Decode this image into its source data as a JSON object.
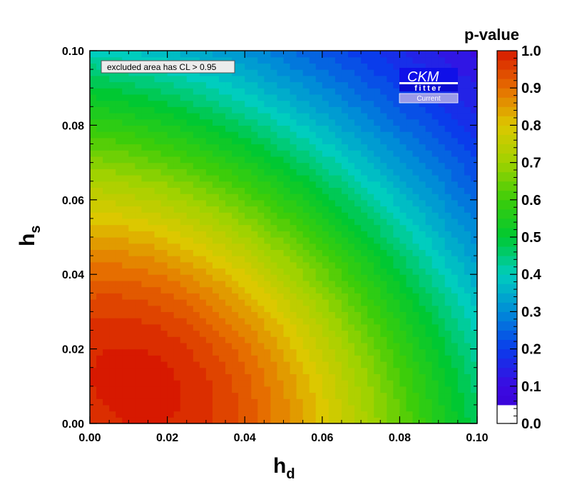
{
  "chart_data": {
    "type": "heatmap",
    "title": "",
    "xlabel": "h",
    "xlabel_sub": "d",
    "ylabel": "h",
    "ylabel_sub": "s",
    "xlim": [
      0.0,
      0.1
    ],
    "ylim": [
      0.0,
      0.1
    ],
    "x_ticks": [
      "0.00",
      "0.02",
      "0.04",
      "0.06",
      "0.08",
      "0.10"
    ],
    "y_ticks": [
      "0.00",
      "0.02",
      "0.04",
      "0.06",
      "0.08",
      "0.10"
    ],
    "x_tick_values": [
      0.0,
      0.02,
      0.04,
      0.06,
      0.08,
      0.1
    ],
    "y_tick_values": [
      0.0,
      0.02,
      0.04,
      0.06,
      0.08,
      0.1
    ],
    "colorbar": {
      "title": "p-value",
      "range": [
        0.0,
        1.0
      ],
      "ticks": [
        "0.0",
        "0.1",
        "0.2",
        "0.3",
        "0.4",
        "0.5",
        "0.6",
        "0.7",
        "0.8",
        "0.9",
        "1.0"
      ],
      "tick_values": [
        0.0,
        0.1,
        0.2,
        0.3,
        0.4,
        0.5,
        0.6,
        0.7,
        0.8,
        0.9,
        1.0
      ],
      "excluded_below": 0.05
    },
    "peak": {
      "x": 0.012,
      "y": 0.01,
      "p": 1.0
    },
    "excluded_region": "top-left corner",
    "annotation": "excluded area has CL > 0.95",
    "logo": {
      "line1": "CKM",
      "line2": "fitter",
      "line3": "Current"
    }
  }
}
